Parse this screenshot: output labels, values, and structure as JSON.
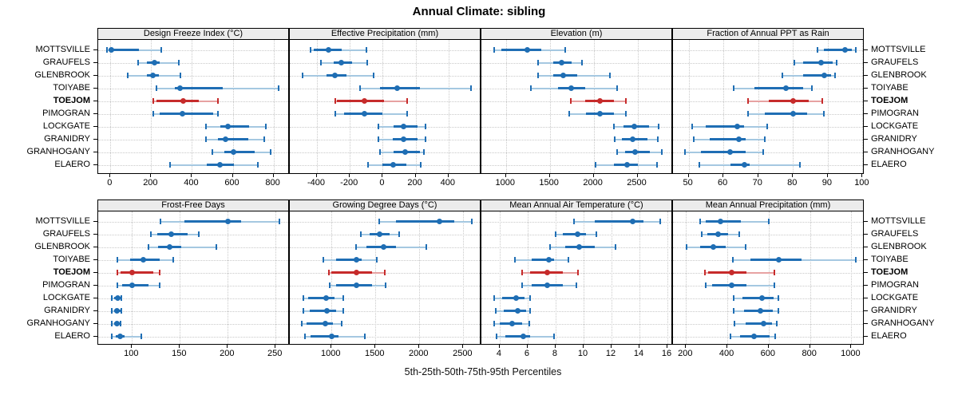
{
  "title": "Annual Climate: sibling",
  "caption": "5th-25th-50th-75th-95th Percentiles",
  "sites": [
    "MOTTSVILLE",
    "GRAUFELS",
    "GLENBROOK",
    "TOIYABE",
    "TOEJOM",
    "PIMOGRAN",
    "LOCKGATE",
    "GRANIDRY",
    "GRANHOGANY",
    "ELAERO"
  ],
  "highlight_site": "TOEJOM",
  "percentile_labels": [
    "5th",
    "25th",
    "50th",
    "75th",
    "95th"
  ],
  "colors": {
    "series": "#1f6eb4",
    "series_light": "#a5c8e1",
    "highlight": "#c62b2b",
    "highlight_light": "#e7a2a2",
    "grid": "#c9c9c9",
    "strip_bg": "#ececec",
    "border": "#000000"
  },
  "chart_data": {
    "type": "dotplot",
    "note": "Each row: [p5, p25, p50, p75, p95] per site, sites ordered as in sites[]",
    "layout": {
      "rows": 2,
      "cols": 4,
      "grid": "dotted",
      "site_labels": "both-sides"
    },
    "panels": [
      {
        "title": "Design Freeze Index (°C)",
        "row": 0,
        "col": 0,
        "ticks": [
          0,
          200,
          400,
          600,
          800
        ],
        "domain": [
          -60,
          880
        ],
        "values": [
          [
            -15,
            -8,
            5,
            140,
            250
          ],
          [
            135,
            180,
            215,
            240,
            335
          ],
          [
            85,
            180,
            210,
            237,
            343
          ],
          [
            225,
            317,
            343,
            552,
            825
          ],
          [
            210,
            226,
            356,
            434,
            528
          ],
          [
            210,
            240,
            355,
            505,
            527
          ],
          [
            467,
            539,
            575,
            682,
            763
          ],
          [
            467,
            526,
            565,
            676,
            754
          ],
          [
            500,
            558,
            604,
            708,
            787
          ],
          [
            291,
            474,
            539,
            604,
            724
          ]
        ]
      },
      {
        "title": "Effective Precipitation (mm)",
        "row": 0,
        "col": 1,
        "ticks": [
          -400,
          -200,
          0,
          200,
          400
        ],
        "domain": [
          -565,
          600
        ],
        "values": [
          [
            -440,
            -420,
            -330,
            -250,
            -97
          ],
          [
            -375,
            -300,
            -250,
            -185,
            -95
          ],
          [
            -485,
            -340,
            -290,
            -220,
            -55
          ],
          [
            -140,
            -15,
            90,
            225,
            535
          ],
          [
            -290,
            -278,
            -113,
            8,
            150
          ],
          [
            -290,
            -235,
            -113,
            0,
            150
          ],
          [
            -25,
            65,
            125,
            210,
            260
          ],
          [
            -25,
            60,
            125,
            210,
            260
          ],
          [
            -15,
            65,
            138,
            225,
            250
          ],
          [
            -90,
            0,
            65,
            145,
            230
          ]
        ]
      },
      {
        "title": "Elevation (m)",
        "row": 0,
        "col": 2,
        "ticks": [
          1000,
          1500,
          2000,
          2500
        ],
        "domain": [
          720,
          2905
        ],
        "values": [
          [
            870,
            945,
            1240,
            1400,
            1680
          ],
          [
            1365,
            1535,
            1635,
            1750,
            1870
          ],
          [
            1365,
            1535,
            1650,
            1810,
            2190
          ],
          [
            1285,
            1595,
            1740,
            1900,
            2265
          ],
          [
            1740,
            1900,
            2075,
            2235,
            2370
          ],
          [
            1725,
            1915,
            2075,
            2235,
            2370
          ],
          [
            2230,
            2340,
            2460,
            2630,
            2740
          ],
          [
            2240,
            2325,
            2445,
            2610,
            2730
          ],
          [
            2265,
            2355,
            2475,
            2640,
            2780
          ],
          [
            2025,
            2235,
            2380,
            2505,
            2720
          ]
        ]
      },
      {
        "title": "Fraction of Annual PPT as Rain",
        "row": 0,
        "col": 3,
        "ticks": [
          50,
          60,
          70,
          80,
          90,
          100
        ],
        "domain": [
          45.5,
          100.6
        ],
        "values": [
          [
            87,
            89,
            95,
            97,
            98
          ],
          [
            80.5,
            83,
            88,
            91.5,
            92.5
          ],
          [
            77,
            83,
            89,
            91,
            92
          ],
          [
            63,
            69,
            78,
            83,
            85.5
          ],
          [
            67,
            73,
            80,
            84.5,
            88.5
          ],
          [
            67,
            72,
            80,
            84,
            89
          ],
          [
            51,
            55,
            64,
            66,
            72.5
          ],
          [
            51.5,
            56,
            64.5,
            66.5,
            72
          ],
          [
            49,
            53.5,
            62,
            66.5,
            71.5
          ],
          [
            53,
            62,
            66,
            67.5,
            82
          ]
        ]
      },
      {
        "title": "Frost-Free Days",
        "row": 1,
        "col": 0,
        "ticks": [
          100,
          150,
          200,
          250
        ],
        "domain": [
          64.7,
          264.8
        ],
        "values": [
          [
            130,
            155,
            200,
            214,
            254
          ],
          [
            120,
            126,
            141,
            158,
            170
          ],
          [
            117,
            127,
            139,
            151,
            188
          ],
          [
            85,
            98,
            112,
            129,
            143
          ],
          [
            85,
            88,
            100,
            122,
            129
          ],
          [
            85,
            90,
            100,
            117,
            129
          ],
          [
            79,
            81,
            85,
            88,
            89
          ],
          [
            79,
            81,
            84,
            88,
            89
          ],
          [
            79,
            81,
            84,
            87,
            88
          ],
          [
            79,
            83,
            88,
            92,
            110
          ]
        ]
      },
      {
        "title": "Growing Degree Days (°C)",
        "row": 1,
        "col": 1,
        "ticks": [
          1000,
          1500,
          2000,
          2500
        ],
        "domain": [
          525,
          2706
        ],
        "values": [
          [
            1545,
            1735,
            2225,
            2400,
            2600
          ],
          [
            1330,
            1430,
            1550,
            1660,
            1770
          ],
          [
            1275,
            1400,
            1590,
            1735,
            2075
          ],
          [
            905,
            1050,
            1280,
            1340,
            1515
          ],
          [
            970,
            995,
            1285,
            1460,
            1605
          ],
          [
            975,
            1050,
            1285,
            1460,
            1615
          ],
          [
            680,
            735,
            935,
            1035,
            1135
          ],
          [
            680,
            750,
            950,
            1050,
            1135
          ],
          [
            665,
            720,
            925,
            1020,
            1115
          ],
          [
            695,
            765,
            1005,
            1080,
            1375
          ]
        ]
      },
      {
        "title": "Mean Annual Air Temperature (°C)",
        "row": 1,
        "col": 2,
        "ticks": [
          4,
          6,
          8,
          10,
          12,
          14,
          16
        ],
        "domain": [
          2.69,
          16.4
        ],
        "values": [
          [
            9.3,
            10.8,
            13.5,
            14.3,
            15.5
          ],
          [
            8.0,
            8.5,
            9.6,
            10.2,
            10.9
          ],
          [
            7.6,
            8.7,
            9.7,
            10.8,
            12.3
          ],
          [
            5.1,
            6.3,
            7.5,
            7.9,
            8.9
          ],
          [
            5.6,
            6.2,
            7.4,
            8.5,
            9.6
          ],
          [
            5.6,
            6.3,
            7.4,
            8.5,
            9.5
          ],
          [
            3.6,
            4.2,
            5.2,
            5.8,
            6.2
          ],
          [
            3.7,
            4.3,
            5.3,
            5.9,
            6.2
          ],
          [
            3.6,
            4.0,
            4.9,
            5.6,
            6.1
          ],
          [
            3.8,
            4.4,
            5.7,
            6.2,
            7.9
          ]
        ]
      },
      {
        "title": "Mean Annual Precipitation (mm)",
        "row": 1,
        "col": 3,
        "ticks": [
          200,
          400,
          600,
          800,
          1000
        ],
        "domain": [
          137,
          1064
        ],
        "values": [
          [
            270,
            295,
            367,
            465,
            600
          ],
          [
            275,
            305,
            355,
            403,
            458
          ],
          [
            202,
            267,
            332,
            390,
            487
          ],
          [
            425,
            510,
            648,
            758,
            1023
          ],
          [
            293,
            306,
            419,
            493,
            629
          ],
          [
            295,
            325,
            419,
            493,
            629
          ],
          [
            431,
            474,
            567,
            622,
            648
          ],
          [
            430,
            480,
            560,
            620,
            648
          ],
          [
            435,
            487,
            574,
            616,
            639
          ],
          [
            416,
            461,
            528,
            603,
            631
          ]
        ]
      }
    ]
  }
}
